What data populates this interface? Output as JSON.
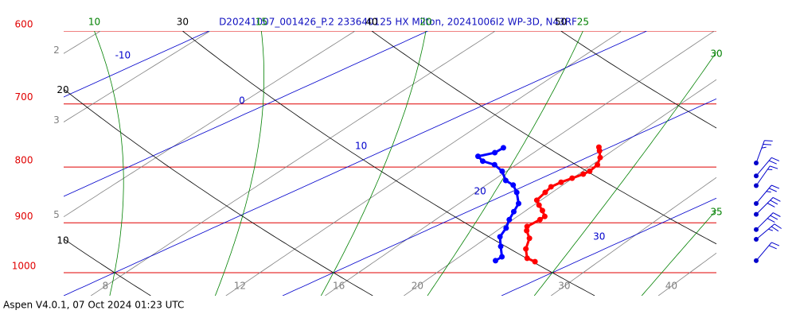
{
  "chart_data": {
    "type": "skew-t",
    "title": "D20241007_001426_P.2 233640125 HX Milton, 20241006I2 WP-3D, N43RF",
    "footer": "Aspen V4.0.1, 07 Oct 2024  01:23 UTC",
    "log_y": true,
    "ylim": [
      1050,
      600
    ],
    "yticks": [
      600,
      700,
      800,
      900,
      1000
    ],
    "isobar_color": "#e00000",
    "isotherms": {
      "color": "#0000cc",
      "values": [
        -10,
        0,
        10,
        20,
        30
      ]
    },
    "dry_adiabats": {
      "color": "#000000",
      "values": [
        10,
        20,
        30,
        40,
        50
      ]
    },
    "moist_adiabats": {
      "color": "#008000",
      "values": [
        10,
        15,
        20,
        25,
        30,
        35
      ]
    },
    "mixing_ratios": {
      "color": "#808080",
      "values": [
        2,
        3,
        5,
        8,
        12,
        16,
        20,
        30,
        40
      ]
    },
    "series": [
      {
        "color": "#ff0000",
        "pressure": [
          977,
          970,
          951,
          930,
          915,
          907,
          894,
          888,
          877,
          867,
          858,
          844,
          834,
          826,
          819,
          812,
          807,
          796,
          784,
          773,
          767
        ],
        "values": [
          28.1,
          27.4,
          26.4,
          25.5,
          24.6,
          24.2,
          24.1,
          24.0,
          23.3,
          22.6,
          22.0,
          21.6,
          21.3,
          21.3,
          21.4,
          21.5,
          21.5,
          21.2,
          20.6,
          19.9,
          19.5
        ]
      },
      {
        "color": "#0000ff",
        "pressure": [
          975,
          967,
          946,
          927,
          910,
          894,
          879,
          864,
          844,
          831,
          823,
          807,
          796,
          790,
          782,
          776,
          768
        ],
        "values": [
          26.2,
          26.1,
          25.0,
          24.0,
          23.4,
          22.7,
          22.1,
          21.5,
          20.3,
          19.4,
          18.6,
          17.5,
          16.5,
          15.6,
          14.9,
          15.3,
          15.2
        ]
      }
    ],
    "winds": {
      "color": "#0000cc",
      "pressure": [
        793,
        815,
        832,
        864,
        884,
        913,
        932,
        975
      ],
      "direction": [
        20,
        40,
        35,
        40,
        45,
        45,
        50,
        40
      ],
      "speed": [
        25,
        20,
        15,
        25,
        30,
        30,
        25,
        20
      ]
    }
  }
}
